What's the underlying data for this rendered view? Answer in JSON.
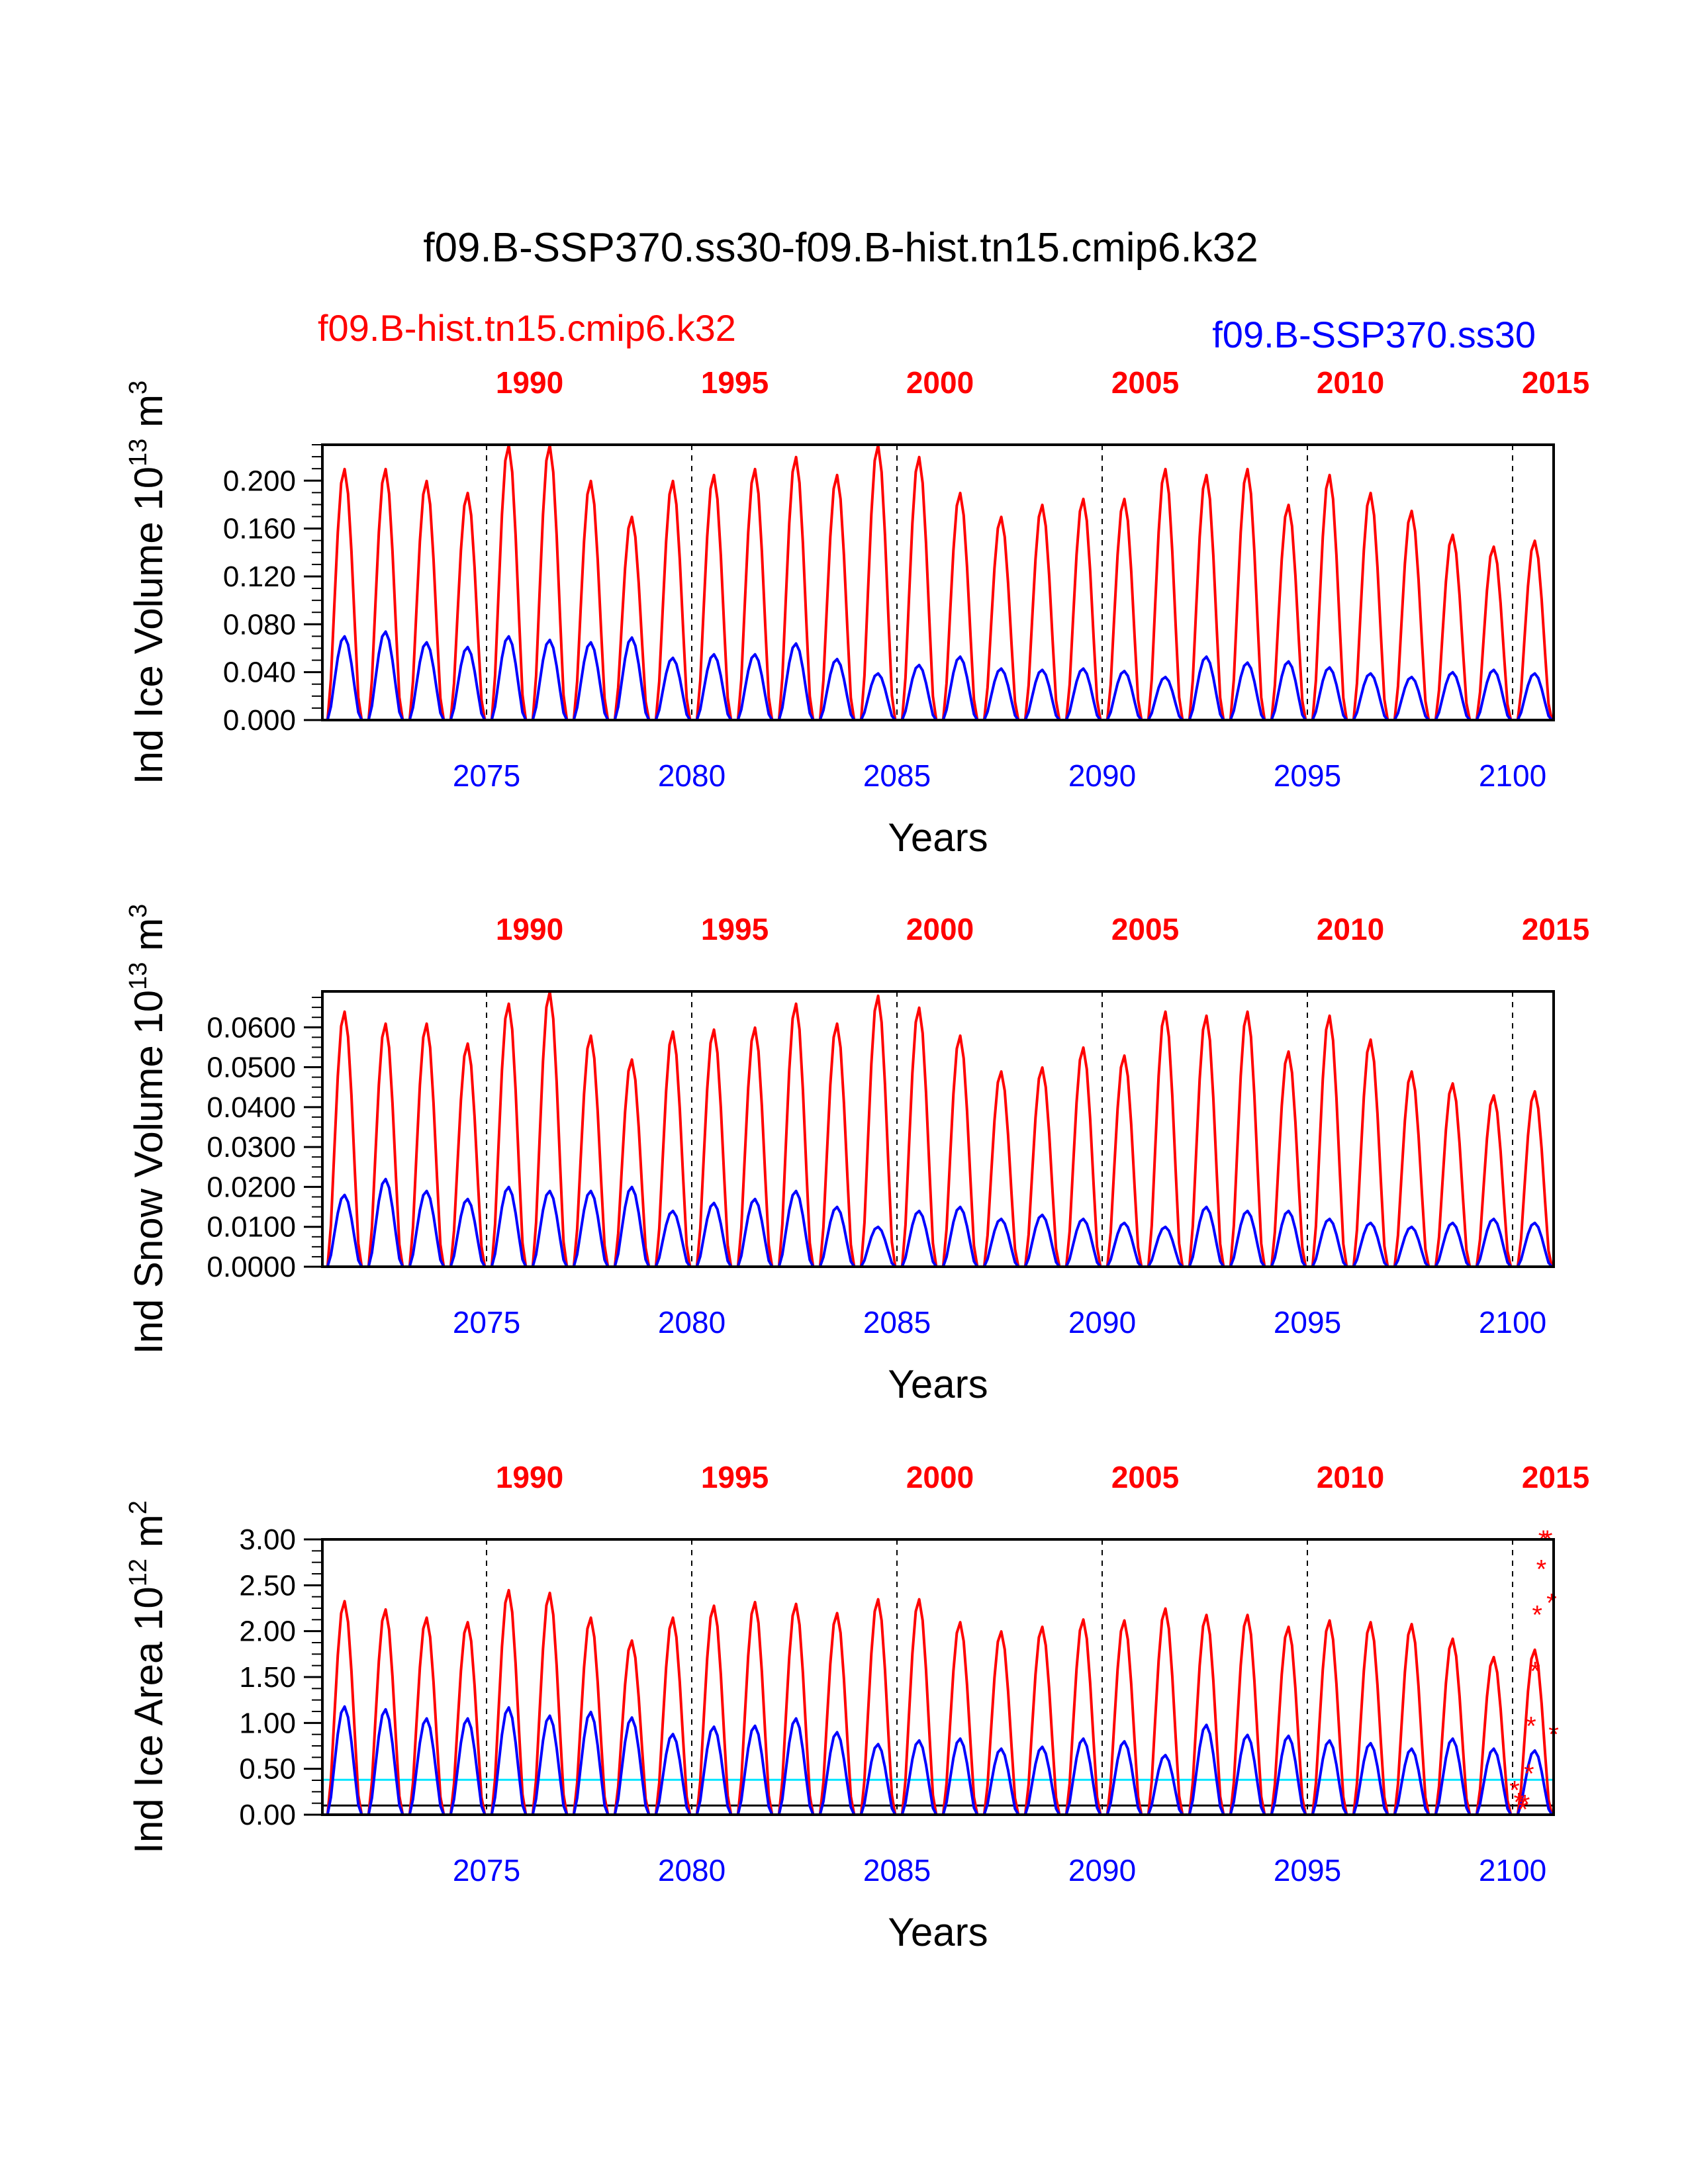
{
  "figure_title": "f09.B-SSP370.ss30-f09.B-hist.tn15.cmip6.k32",
  "legend_left": "f09.B-hist.tn15.cmip6.k32",
  "legend_right": "f09.B-SSP370.ss30",
  "colors": {
    "hist": "#ff0000",
    "ssp": "#0000ff",
    "ref": "#00e5ff",
    "axis": "#000000"
  },
  "chart_data": [
    {
      "type": "line",
      "ylabel_main": "Ind Ice Volume 10",
      "ylabel_exp": "13",
      "ylabel_unit": " m",
      "ylabel_unit_exp": "3",
      "xlabel": "Years",
      "xlim": [
        2071,
        2101
      ],
      "ylim": [
        0,
        0.23
      ],
      "yticks": [
        "0.000",
        "0.040",
        "0.080",
        "0.120",
        "0.160",
        "0.200"
      ],
      "yminor": 0.01,
      "bottom_ticks": [
        "2075",
        "2080",
        "2085",
        "2090",
        "2095",
        "2100"
      ],
      "top_ticks": [
        "1990",
        "1995",
        "2000",
        "2005",
        "2010",
        "2015"
      ],
      "series": [
        {
          "name": "f09.B-hist.tn15.cmip6.k32",
          "color": "red",
          "peaks": [
            0.21,
            0.21,
            0.2,
            0.19,
            0.23,
            0.23,
            0.2,
            0.17,
            0.2,
            0.205,
            0.21,
            0.22,
            0.205,
            0.23,
            0.22,
            0.19,
            0.17,
            0.18,
            0.185,
            0.185,
            0.21,
            0.205,
            0.21,
            0.18,
            0.205,
            0.19,
            0.175,
            0.155,
            0.145,
            0.15
          ]
        },
        {
          "name": "f09.B-SSP370.ss30",
          "color": "blue",
          "peaks": [
            0.07,
            0.074,
            0.065,
            0.061,
            0.07,
            0.067,
            0.065,
            0.069,
            0.052,
            0.055,
            0.055,
            0.064,
            0.051,
            0.039,
            0.046,
            0.053,
            0.043,
            0.042,
            0.043,
            0.041,
            0.036,
            0.053,
            0.048,
            0.049,
            0.044,
            0.039,
            0.036,
            0.04,
            0.042,
            0.039
          ]
        }
      ]
    },
    {
      "type": "line",
      "ylabel_main": "Ind Snow Volume 10",
      "ylabel_exp": "13",
      "ylabel_unit": " m",
      "ylabel_unit_exp": "3",
      "xlabel": "Years",
      "xlim": [
        2071,
        2101
      ],
      "ylim": [
        0,
        0.069
      ],
      "yticks": [
        "0.0000",
        "0.0100",
        "0.0200",
        "0.0300",
        "0.0400",
        "0.0500",
        "0.0600"
      ],
      "yminor": 0.0025,
      "bottom_ticks": [
        "2075",
        "2080",
        "2085",
        "2090",
        "2095",
        "2100"
      ],
      "top_ticks": [
        "1990",
        "1995",
        "2000",
        "2005",
        "2010",
        "2015"
      ],
      "series": [
        {
          "name": "f09.B-hist.tn15.cmip6.k32",
          "color": "red",
          "peaks": [
            0.064,
            0.061,
            0.061,
            0.056,
            0.066,
            0.069,
            0.058,
            0.052,
            0.059,
            0.0595,
            0.06,
            0.066,
            0.061,
            0.068,
            0.065,
            0.058,
            0.049,
            0.05,
            0.055,
            0.053,
            0.064,
            0.063,
            0.064,
            0.054,
            0.063,
            0.057,
            0.049,
            0.046,
            0.043,
            0.044
          ]
        },
        {
          "name": "f09.B-SSP370.ss30",
          "color": "blue",
          "peaks": [
            0.018,
            0.022,
            0.019,
            0.017,
            0.02,
            0.019,
            0.019,
            0.02,
            0.014,
            0.016,
            0.017,
            0.019,
            0.015,
            0.01,
            0.014,
            0.015,
            0.012,
            0.013,
            0.012,
            0.011,
            0.01,
            0.015,
            0.014,
            0.014,
            0.012,
            0.011,
            0.01,
            0.011,
            0.012,
            0.011
          ]
        }
      ]
    },
    {
      "type": "line",
      "ylabel_main": "Ind Ice Area 10",
      "ylabel_exp": "12",
      "ylabel_unit": " m",
      "ylabel_unit_exp": "2",
      "xlabel": "Years",
      "xlim": [
        2071,
        2101
      ],
      "ylim": [
        0,
        3.0
      ],
      "yticks": [
        "0.00",
        "0.50",
        "1.00",
        "1.50",
        "2.00",
        "2.50",
        "3.00"
      ],
      "yminor": 0.125,
      "bottom_ticks": [
        "2075",
        "2080",
        "2085",
        "2090",
        "2095",
        "2100"
      ],
      "top_ticks": [
        "1990",
        "1995",
        "2000",
        "2005",
        "2010",
        "2015"
      ],
      "reference_lines": [
        {
          "value": 0.38,
          "color": "cyan"
        },
        {
          "value": 0.1,
          "color": "black"
        }
      ],
      "series": [
        {
          "name": "f09.B-hist.tn15.cmip6.k32",
          "color": "red",
          "peaks": [
            2.33,
            2.24,
            2.15,
            2.1,
            2.45,
            2.42,
            2.15,
            1.9,
            2.15,
            2.28,
            2.32,
            2.3,
            2.2,
            2.35,
            2.35,
            2.1,
            2.0,
            2.05,
            2.13,
            2.12,
            2.25,
            2.18,
            2.18,
            2.05,
            2.12,
            2.1,
            2.08,
            1.92,
            1.72,
            1.8
          ]
        },
        {
          "name": "f09.B-SSP370.ss30",
          "color": "blue",
          "peaks": [
            1.18,
            1.15,
            1.05,
            1.05,
            1.17,
            1.08,
            1.12,
            1.06,
            0.88,
            0.96,
            0.97,
            1.05,
            0.9,
            0.77,
            0.81,
            0.83,
            0.72,
            0.74,
            0.83,
            0.8,
            0.65,
            0.98,
            0.87,
            0.86,
            0.81,
            0.78,
            0.72,
            0.83,
            0.72,
            0.7
          ]
        }
      ],
      "markers": {
        "color": "red",
        "symbol": "*",
        "points": [
          {
            "x": 2100.05,
            "y": 0.27
          },
          {
            "x": 2100.15,
            "y": 0.14
          },
          {
            "x": 2100.25,
            "y": 0.06
          },
          {
            "x": 2100.3,
            "y": 0.12
          },
          {
            "x": 2100.4,
            "y": 0.45
          },
          {
            "x": 2100.45,
            "y": 0.97
          },
          {
            "x": 2100.55,
            "y": 1.57
          },
          {
            "x": 2100.6,
            "y": 2.18
          },
          {
            "x": 2100.7,
            "y": 2.68
          },
          {
            "x": 2100.75,
            "y": 3.0
          },
          {
            "x": 2100.85,
            "y": 3.0
          },
          {
            "x": 2100.95,
            "y": 2.31
          },
          {
            "x": 2101.0,
            "y": 0.88
          }
        ]
      }
    }
  ]
}
